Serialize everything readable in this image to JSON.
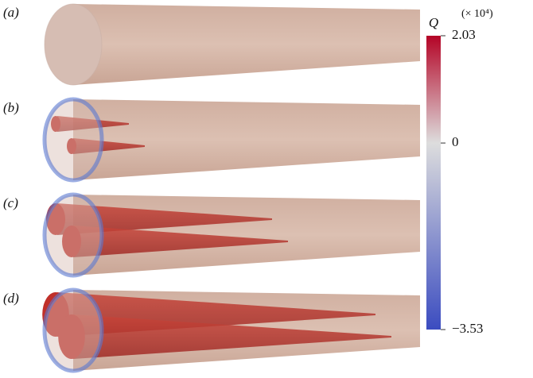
{
  "panels": [
    {
      "label": "(a)"
    },
    {
      "label": "(b)"
    },
    {
      "label": "(c)"
    },
    {
      "label": "(d)"
    }
  ],
  "colorbar": {
    "label": "Q",
    "multiplier": "(× 10⁴)",
    "lim": [
      -3.53,
      2.03
    ],
    "ticks": [
      2.03,
      0,
      {
        "value": -3.53,
        "label": "−3.53"
      }
    ]
  }
}
